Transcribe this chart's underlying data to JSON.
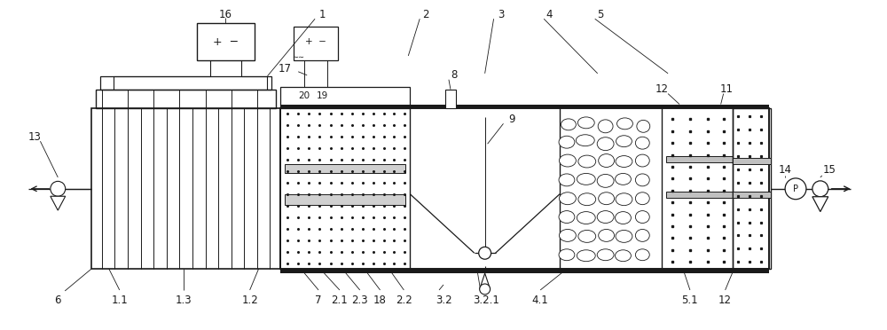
{
  "bg_color": "#ffffff",
  "line_color": "#1a1a1a",
  "figure_width": 10.0,
  "figure_height": 3.72,
  "dpi": 100
}
